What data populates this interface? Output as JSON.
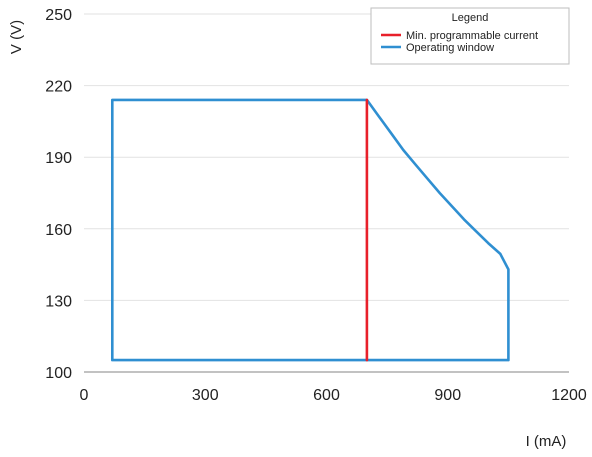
{
  "chart_data": {
    "type": "line",
    "xlabel": "I (mA)",
    "ylabel": "V (V)",
    "xlim": [
      0,
      1200
    ],
    "ylim": [
      100,
      250
    ],
    "xticks": [
      0,
      300,
      600,
      900,
      1200
    ],
    "yticks": [
      100,
      130,
      160,
      190,
      220,
      250
    ],
    "grid": "horizontal",
    "legend": {
      "title": "Legend",
      "placement": "top-right"
    },
    "series": [
      {
        "name": "Min. programmable current",
        "color": "#e8202a",
        "x": [
          700,
          700
        ],
        "y": [
          105,
          214
        ]
      },
      {
        "name": "Operating window",
        "color": "#2f8fd1",
        "x": [
          70,
          700,
          730,
          760,
          790,
          820,
          850,
          880,
          910,
          940,
          970,
          1000,
          1030,
          1050,
          1050,
          70,
          70
        ],
        "y": [
          214,
          214,
          207,
          200,
          193,
          187,
          181,
          175,
          169.5,
          164,
          159,
          154,
          149.5,
          143,
          105,
          105,
          214
        ]
      }
    ]
  }
}
